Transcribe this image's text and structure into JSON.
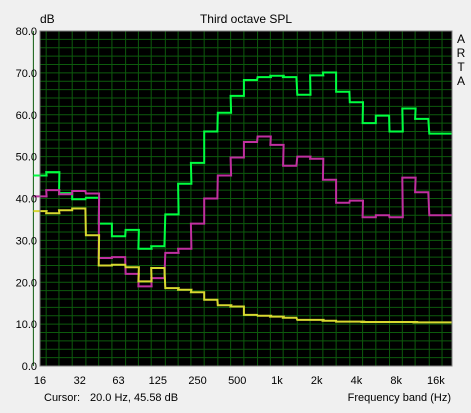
{
  "chart_data": {
    "type": "line",
    "title": "Third octave SPL",
    "ylabel": "dB",
    "xlabel": "Frequency band (Hz)",
    "side_label": [
      "A",
      "R",
      "T",
      "A"
    ],
    "ylim": [
      0,
      80
    ],
    "y_ticks": [
      "0.0",
      "10.0",
      "20.0",
      "30.0",
      "40.0",
      "50.0",
      "60.0",
      "70.0",
      "80.0"
    ],
    "x_ticks": [
      "16",
      "32",
      "63",
      "125",
      "250",
      "500",
      "1k",
      "2k",
      "4k",
      "8k",
      "16k"
    ],
    "grid": true,
    "bands": [
      16,
      20,
      25,
      31.5,
      40,
      50,
      63,
      80,
      100,
      125,
      160,
      200,
      250,
      315,
      400,
      500,
      630,
      800,
      1000,
      1250,
      1600,
      2000,
      2500,
      3150,
      4000,
      5000,
      6300,
      8000,
      10000,
      12500,
      16000,
      20000
    ],
    "series": [
      {
        "color": "#00ff40",
        "values": [
          45.5,
          46.3,
          41.3,
          39.8,
          40.2,
          34.0,
          31.0,
          32.5,
          28.0,
          28.6,
          36.2,
          43.5,
          48.5,
          56.0,
          60.5,
          64.5,
          68.3,
          69.0,
          69.3,
          69.0,
          64.8,
          69.4,
          70.1,
          65.5,
          63.0,
          58.0,
          59.8,
          56.0,
          61.5,
          59.0,
          55.5,
          55.5
        ]
      },
      {
        "color": "#c030a0",
        "values": [
          40.5,
          42.0,
          41.0,
          41.8,
          41.2,
          25.8,
          26.0,
          22.0,
          19.0,
          21.0,
          27.0,
          28.0,
          34.0,
          40.0,
          45.5,
          49.8,
          53.5,
          54.8,
          52.8,
          47.8,
          50.0,
          49.5,
          44.5,
          39.0,
          39.5,
          35.5,
          36.0,
          35.5,
          45.0,
          41.5,
          36.0,
          36.0
        ]
      },
      {
        "color": "#d8d830",
        "values": [
          37.0,
          36.5,
          37.2,
          37.6,
          31.2,
          24.0,
          24.2,
          23.6,
          20.2,
          23.4,
          18.6,
          18.2,
          17.6,
          15.8,
          14.5,
          14.2,
          12.2,
          12.0,
          11.8,
          11.5,
          11.0,
          11.0,
          10.8,
          10.6,
          10.6,
          10.5,
          10.5,
          10.5,
          10.5,
          10.4,
          10.4,
          10.4
        ]
      }
    ]
  },
  "status": {
    "cursor_label": "Cursor:",
    "cursor_value": "20.0 Hz, 45.58 dB",
    "x_axis_label": "Frequency band (Hz)"
  }
}
